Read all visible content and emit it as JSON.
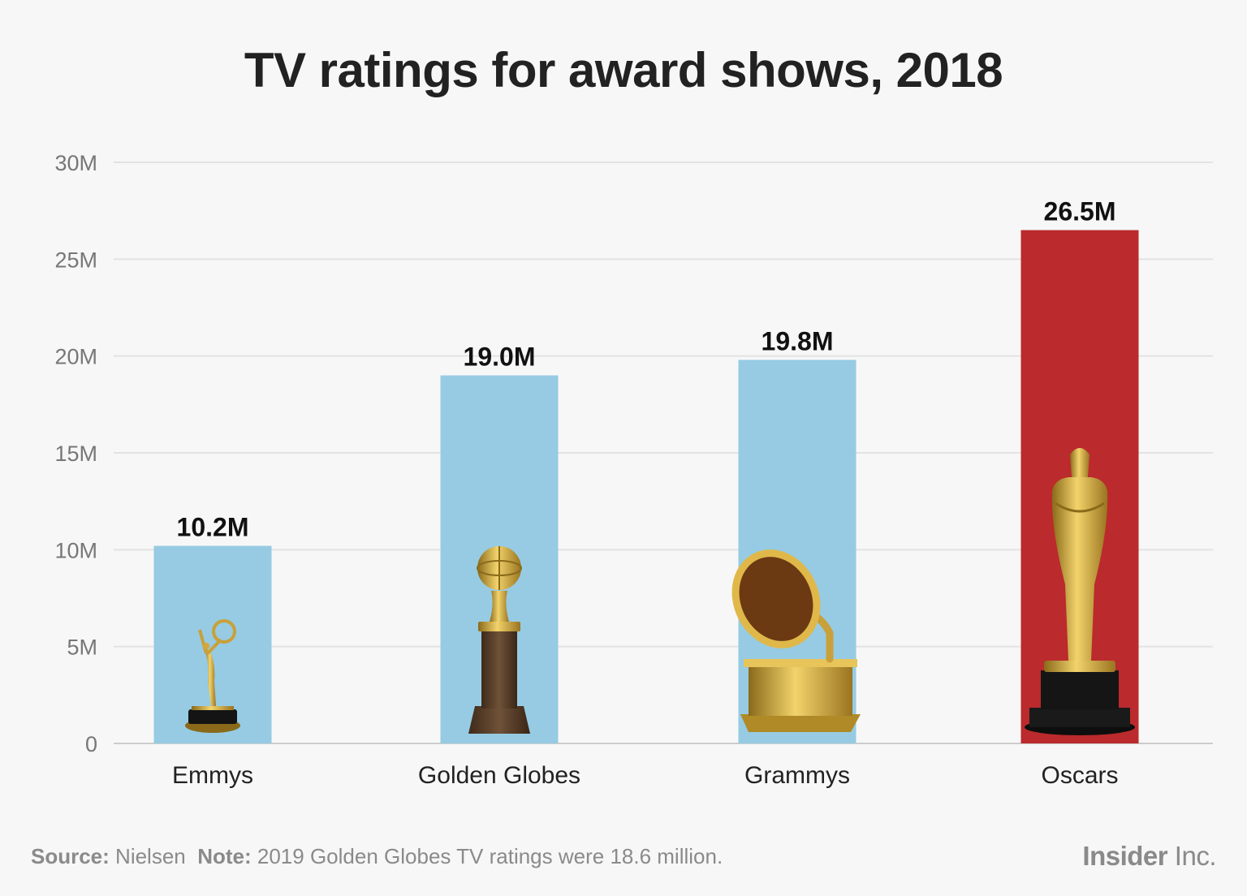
{
  "chart_data": {
    "type": "bar",
    "title": "TV ratings for award shows, 2018",
    "categories": [
      "Emmys",
      "Golden Globes",
      "Grammys",
      "Oscars"
    ],
    "values": [
      10.2,
      19.0,
      19.8,
      26.5
    ],
    "value_labels": [
      "10.2M",
      "19.0M",
      "19.8M",
      "26.5M"
    ],
    "bar_colors": [
      "#96cbe3",
      "#96cbe3",
      "#96cbe3",
      "#bb2a2c"
    ],
    "ylim": [
      0,
      30
    ],
    "yticks": [
      0,
      5,
      10,
      15,
      20,
      25,
      30
    ],
    "ytick_labels": [
      "0",
      "5M",
      "10M",
      "15M",
      "20M",
      "25M",
      "30M"
    ],
    "trophy_icons": [
      "emmy-statuette-icon",
      "golden-globe-icon",
      "gramophone-icon",
      "oscar-statuette-icon"
    ],
    "grid": true,
    "xlabel": "",
    "ylabel": ""
  },
  "footer": {
    "source_label": "Source:",
    "source_text": "Nielsen",
    "note_label": "Note:",
    "note_text": "2019 Golden Globes TV ratings were 18.6 million.",
    "brand_bold": "Insider",
    "brand_light": "Inc."
  },
  "colors": {
    "background": "#f7f7f7",
    "gridline": "#e3e3e3",
    "axis": "#cccccc",
    "gold": "#d4a73a"
  }
}
